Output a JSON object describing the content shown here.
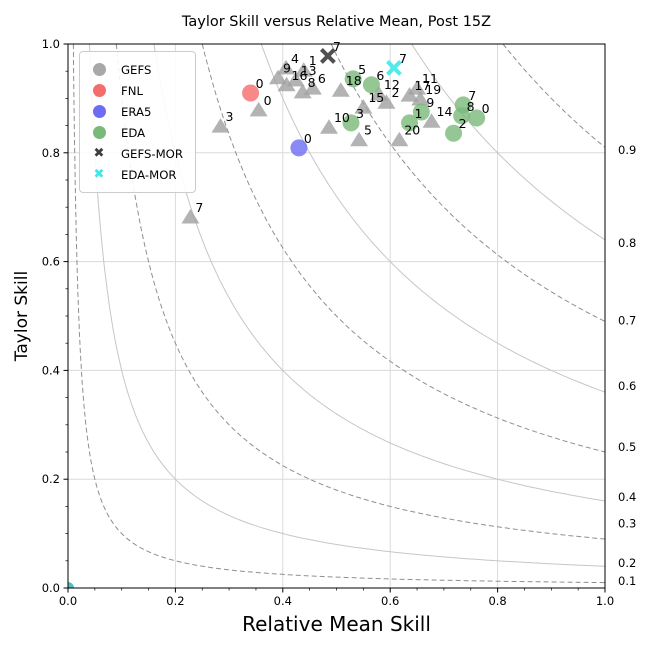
{
  "title": "Taylor Skill versus Relative Mean, Post 15Z",
  "axes": {
    "xlabel": "Relative Mean Skill",
    "ylabel": "Taylor Skill",
    "xticks": [
      "0.0",
      "0.2",
      "0.4",
      "0.6",
      "0.8",
      "1.0"
    ],
    "yticks": [
      "0.0",
      "0.2",
      "0.4",
      "0.6",
      "0.8",
      "1.0"
    ]
  },
  "legend": {
    "items": [
      {
        "label": "GEFS",
        "marker": "circle",
        "color": "#a8a8a8"
      },
      {
        "label": "FNL",
        "marker": "circle",
        "color": "#f56c6c"
      },
      {
        "label": "ERA5",
        "marker": "circle",
        "color": "#6d6df2"
      },
      {
        "label": "EDA",
        "marker": "circle",
        "color": "#79b979"
      },
      {
        "label": "GEFS-MOR",
        "marker": "x",
        "color": "#3d3d3d"
      },
      {
        "label": "EDA-MOR",
        "marker": "x",
        "color": "#3fe8e8"
      }
    ]
  },
  "chart_data": {
    "type": "scatter",
    "title": "Taylor Skill versus Relative Mean, Post 15Z",
    "xlabel": "Relative Mean Skill",
    "ylabel": "Taylor Skill",
    "xlim": [
      0.0,
      1.0
    ],
    "ylim": [
      0.0,
      1.0
    ],
    "grid": true,
    "legend_position": "upper-left",
    "series": [
      {
        "name": "GEFS",
        "marker": "triangle",
        "color": "#a0a0a0",
        "points": [
          {
            "label": "0",
            "x": 0.355,
            "y": 0.879
          },
          {
            "label": "1",
            "x": 0.439,
            "y": 0.952
          },
          {
            "label": "2",
            "x": 0.593,
            "y": 0.893
          },
          {
            "label": "3",
            "x": 0.284,
            "y": 0.849
          },
          {
            "label": "4",
            "x": 0.406,
            "y": 0.956
          },
          {
            "label": "5",
            "x": 0.542,
            "y": 0.824
          },
          {
            "label": "6",
            "x": 0.456,
            "y": 0.919
          },
          {
            "label": "7",
            "x": 0.228,
            "y": 0.682
          },
          {
            "label": "8",
            "x": 0.437,
            "y": 0.912
          },
          {
            "label": "9",
            "x": 0.391,
            "y": 0.938
          },
          {
            "label": "10",
            "x": 0.486,
            "y": 0.847
          },
          {
            "label": "11",
            "x": 0.65,
            "y": 0.919
          },
          {
            "label": "12",
            "x": 0.579,
            "y": 0.908
          },
          {
            "label": "13",
            "x": 0.424,
            "y": 0.934
          },
          {
            "label": "14",
            "x": 0.677,
            "y": 0.858
          },
          {
            "label": "15",
            "x": 0.55,
            "y": 0.884
          },
          {
            "label": "16",
            "x": 0.407,
            "y": 0.925
          },
          {
            "label": "17",
            "x": 0.636,
            "y": 0.906
          },
          {
            "label": "18",
            "x": 0.508,
            "y": 0.915
          },
          {
            "label": "19",
            "x": 0.656,
            "y": 0.899
          },
          {
            "label": "20",
            "x": 0.617,
            "y": 0.824
          }
        ]
      },
      {
        "name": "FNL",
        "marker": "circle",
        "r": 8.5,
        "color": "#f56c6c",
        "points": [
          {
            "label": "0",
            "x": 0.34,
            "y": 0.91
          }
        ]
      },
      {
        "name": "ERA5",
        "marker": "circle",
        "r": 8.5,
        "color": "#6d6df2",
        "points": [
          {
            "label": "0",
            "x": 0.43,
            "y": 0.809
          }
        ]
      },
      {
        "name": "EDA",
        "marker": "circle",
        "r": 8.5,
        "color": "#79b979",
        "points": [
          {
            "label": "5",
            "x": 0.531,
            "y": 0.936
          },
          {
            "label": "6",
            "x": 0.565,
            "y": 0.925
          },
          {
            "label": "3",
            "x": 0.527,
            "y": 0.855
          },
          {
            "label": "9",
            "x": 0.658,
            "y": 0.875
          },
          {
            "label": "1",
            "x": 0.636,
            "y": 0.855
          },
          {
            "label": "7",
            "x": 0.736,
            "y": 0.888
          },
          {
            "label": "8",
            "x": 0.733,
            "y": 0.868
          },
          {
            "label": "0",
            "x": 0.761,
            "y": 0.864
          },
          {
            "label": "2",
            "x": 0.718,
            "y": 0.836
          }
        ]
      },
      {
        "name": "GEFS-MOR",
        "marker": "x",
        "color": "#3d3d3d",
        "points": [
          {
            "label": "7",
            "x": 0.484,
            "y": 0.978
          }
        ]
      },
      {
        "name": "EDA-MOR",
        "marker": "x",
        "color": "#3fe8e8",
        "points": [
          {
            "label": "7",
            "x": 0.607,
            "y": 0.956
          }
        ]
      },
      {
        "name": "origin-marker",
        "marker": "circle",
        "r": 6,
        "color": "#28b0b0",
        "points": [
          {
            "label": "",
            "x": 0.0,
            "y": 0.0
          }
        ]
      }
    ],
    "contours": {
      "description": "iso-skill hyperbolas x*y = c^2",
      "levels_solid": [
        0.2,
        0.4,
        0.6,
        0.8
      ],
      "levels_dashed": [
        0.1,
        0.3,
        0.5,
        0.7,
        0.9
      ]
    },
    "right_axis_labels": [
      {
        "label": "0.9",
        "y": 0.805
      },
      {
        "label": "0.8",
        "y": 0.634
      },
      {
        "label": "0.7",
        "y": 0.492
      },
      {
        "label": "0.6",
        "y": 0.371
      },
      {
        "label": "0.5",
        "y": 0.259
      },
      {
        "label": "0.4",
        "y": 0.167
      },
      {
        "label": "0.3",
        "y": 0.119
      },
      {
        "label": "0.2",
        "y": 0.046
      },
      {
        "label": "0.1",
        "y": 0.013
      }
    ]
  }
}
